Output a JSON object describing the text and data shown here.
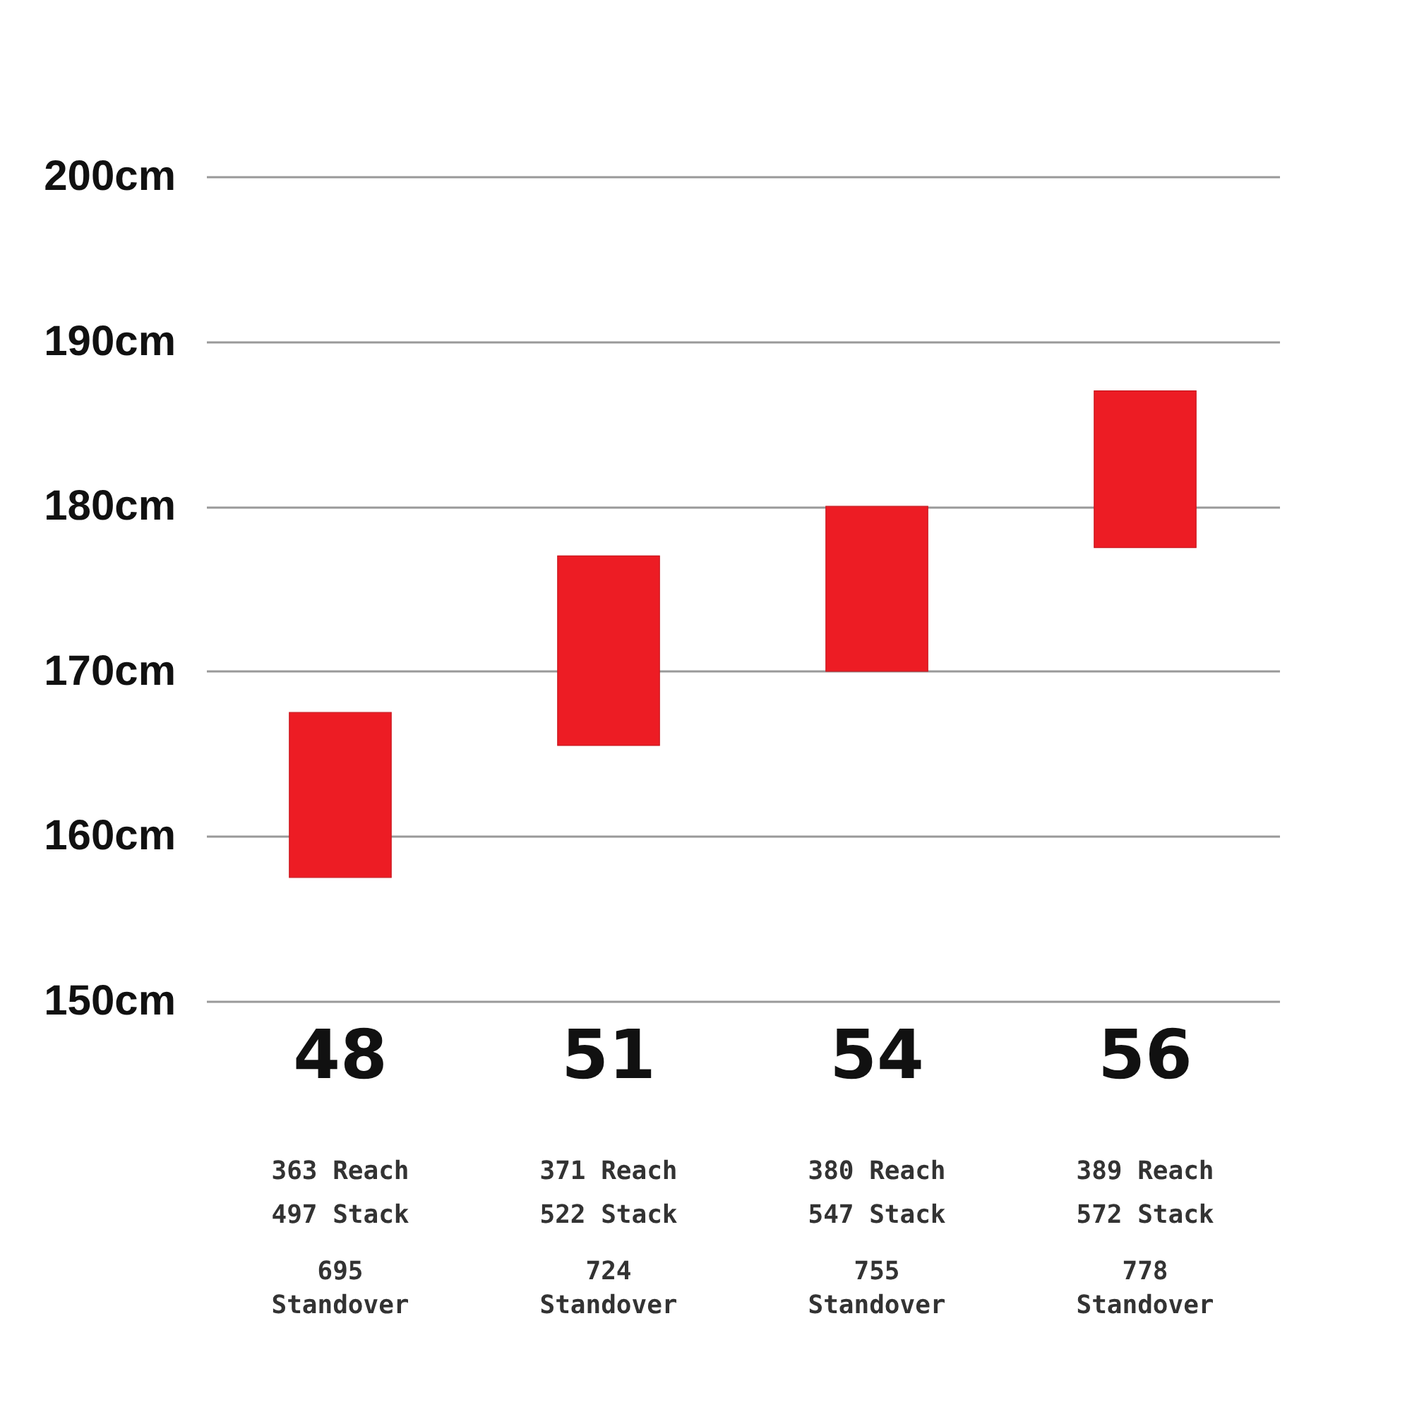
{
  "chart_data": {
    "type": "bar",
    "categories": [
      "48",
      "51",
      "54",
      "56"
    ],
    "base": [
      157.5,
      165.5,
      170,
      177.5
    ],
    "values": [
      10,
      11.5,
      10,
      9.5
    ],
    "color": "#ed1c24",
    "ylim": [
      150,
      200
    ],
    "yticks": [
      {
        "value": 150,
        "label": "150cm"
      },
      {
        "value": 160,
        "label": "160cm"
      },
      {
        "value": 170,
        "label": "170cm"
      },
      {
        "value": 180,
        "label": "180cm"
      },
      {
        "value": 190,
        "label": "190cm"
      },
      {
        "value": 200,
        "label": "200cm"
      }
    ],
    "grid": "y",
    "annotations": [
      "363 Reach",
      "497 Stack",
      "695\nStandover",
      "371 Reach",
      "522 Stack",
      "724\nStandover",
      "380 Reach",
      "547 Stack",
      "755\nStandover",
      "389 Reach",
      "572 Stack",
      "778\nStandover"
    ]
  }
}
